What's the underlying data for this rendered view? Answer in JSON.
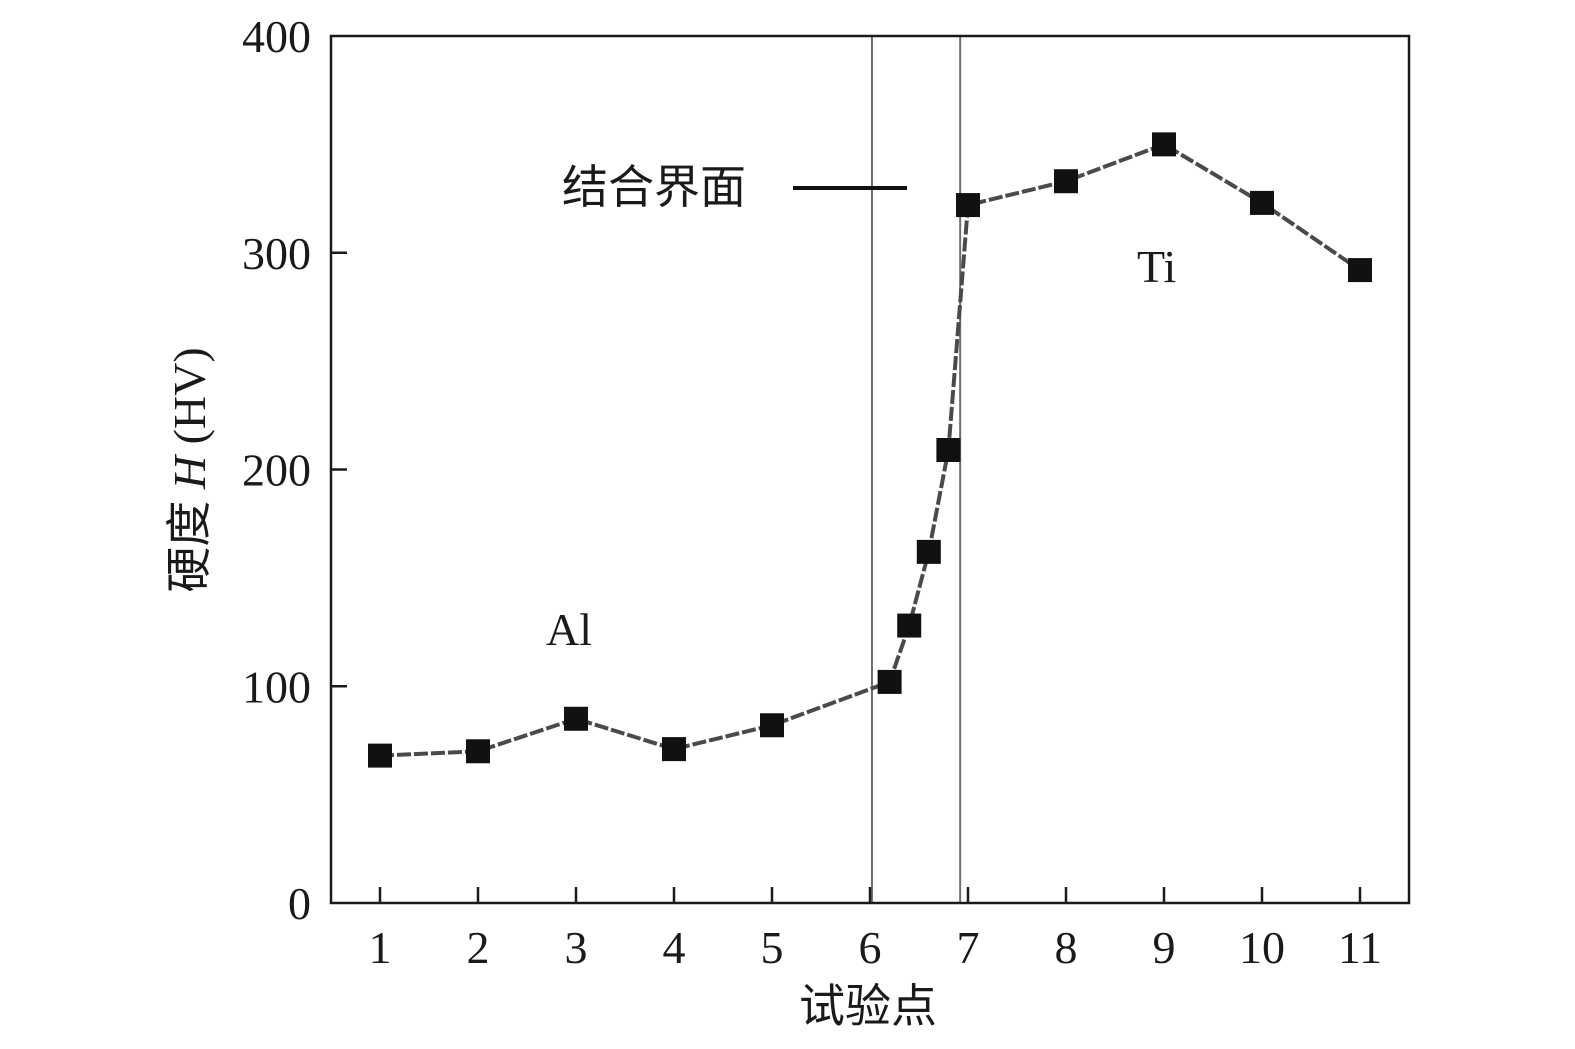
{
  "chart_data": {
    "type": "line",
    "xlabel": "试验点",
    "ylabel_prefix": "硬度 ",
    "ylabel_var": "H",
    "ylabel_unit": " (HV)",
    "xlim": [
      0.5,
      11.5
    ],
    "ylim": [
      0,
      400
    ],
    "x_ticks": [
      1,
      2,
      3,
      4,
      5,
      6,
      7,
      8,
      9,
      10,
      11
    ],
    "y_ticks": [
      0,
      100,
      200,
      300,
      400
    ],
    "grid": false,
    "series": [
      {
        "x": [
          1,
          2,
          3,
          4,
          5,
          6.2,
          6.4,
          6.6,
          6.8,
          7,
          8,
          9,
          10,
          11
        ],
        "y": [
          68,
          70,
          85,
          71,
          82,
          102,
          128,
          162,
          209,
          322,
          333,
          350,
          323,
          292
        ],
        "color": "#4a4a4a",
        "marker": "square",
        "marker_color": "#111111",
        "line_style": "dashed"
      }
    ],
    "interface_lines_x": [
      6.02,
      6.92
    ],
    "interface_line_color": "#6e6e6e",
    "annotations": {
      "interface_label": "结合界面",
      "al_label": "Al",
      "ti_label": "Ti"
    }
  }
}
